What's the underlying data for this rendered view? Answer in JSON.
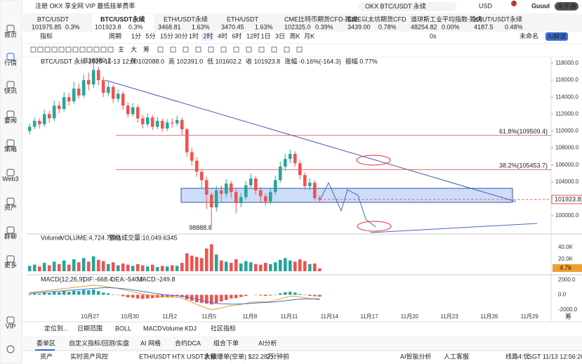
{
  "banner": "注册 OKX 享全网 VIP 最低挂单费率",
  "search": "OKX BTC/USDT 永续",
  "user": "Guuul",
  "currency": "USD",
  "status": "未开通",
  "badge": "7",
  "sidebar": [
    "首页",
    "行情",
    "快讯",
    "要闻",
    "策略",
    "Web3",
    "资产",
    "群聊",
    "更多",
    "VIP"
  ],
  "tickers": [
    {
      "name": "BTC/USDT",
      "price": "101975.85",
      "change": "0.3%",
      "color": "#1a9e6a"
    },
    {
      "name": "BTC/USDT永续",
      "price": "101923.8",
      "change": "0.3%",
      "color": "#1a9e6a"
    },
    {
      "name": "ETH/USDT永续",
      "price": "3468.81",
      "change": "1.63%",
      "color": "#e03a3a"
    },
    {
      "name": "ETH/USDT",
      "price": "3470.45",
      "change": "1.63%",
      "color": "#e03a3a"
    },
    {
      "name": "CME比特币期货CFD-路虎",
      "price": "102325.0",
      "change": "0.39%",
      "color": "#333333"
    },
    {
      "name": "CME以太坊期货CFD",
      "price": "3439.00",
      "change": "0.78%",
      "color": "#333333"
    },
    {
      "name": "道琼斯工业平均指数-路虎",
      "price": "48254.82",
      "change": "0.00%",
      "color": "#333333"
    },
    {
      "name": "XAUT/USDT永续",
      "price": "4187.5",
      "change": "0.48%",
      "color": "#1a9e6a"
    }
  ],
  "toolbar": {
    "indicator": "指标",
    "period": "周期",
    "intervals": [
      "1分",
      "5分",
      "15分",
      "30分",
      "1时",
      "2时",
      "4时",
      "6时",
      "12时",
      "1日",
      "3日",
      "周K",
      "月K"
    ],
    "timer": "0s",
    "layout_name": "未命名",
    "ai_button": "AI解读"
  },
  "draw_tools": [
    "主",
    "大",
    "筹"
  ],
  "bottom_bar": {
    "locate": "定位到...",
    "date_range": "日期范围",
    "indicators": [
      "BOLL",
      "MACD",
      "Volume",
      "KDJ"
    ],
    "community": "社区指标",
    "chip": "筹"
  },
  "tabs": [
    "委单区",
    "自定义指标/回测/实盘",
    "AI 网格",
    "合约DCA",
    "组合下单",
    "AI分析"
  ],
  "status_bar": {
    "assets": "资产",
    "risk": "实时资产风控",
    "news": "ETH/USDT HTX USDT永续",
    "alert": "大额爆单(空单) $22.28万",
    "ago": "2分钟前",
    "ai": "AI智能分析",
    "service": "人工客服",
    "line": "线路4:优",
    "time": "SGT 11/13 12:56:26"
  },
  "chart_data": {
    "type": "candlestick",
    "title": "BTC/USDT 永续 2025-11-13 12:00",
    "info": [
      "开 102088.0",
      "高 102391.0",
      "低 101602.2",
      "收 101923.8",
      "涨幅 -0.16%(-164.3)",
      "振幅 0.77%"
    ],
    "up_color": "#26a69a",
    "down_color": "#ef5350",
    "open": [
      110000,
      110500,
      111200,
      110800,
      112000,
      111500,
      113000,
      112600,
      114000,
      113500,
      115000,
      114200,
      116000,
      115500,
      117200,
      116000,
      114500,
      115200,
      113800,
      114400,
      113000,
      112000,
      112800,
      111500,
      110800,
      111600,
      110500,
      111200,
      110300,
      111000,
      110900,
      111300,
      110200,
      107500,
      106500,
      105200,
      104200,
      102500,
      101000,
      103000,
      102600,
      103800,
      102800,
      101500,
      102200,
      103600,
      104400,
      103000,
      102300,
      101700,
      102800,
      104200,
      105800,
      106700,
      107300,
      106200,
      104800,
      103500,
      103900,
      102088
    ],
    "high": [
      110900,
      111600,
      111500,
      112500,
      112400,
      113600,
      113500,
      114600,
      114500,
      115800,
      115600,
      116700,
      116900,
      118380.2,
      117600,
      116400,
      115900,
      115500,
      114900,
      114700,
      113400,
      113300,
      113100,
      111900,
      112100,
      111900,
      111700,
      111500,
      111400,
      111500,
      111800,
      111600,
      110400,
      108000,
      106900,
      105500,
      104600,
      102800,
      103500,
      103600,
      104300,
      104100,
      103100,
      102700,
      104100,
      105000,
      104700,
      103400,
      102600,
      103200,
      104700,
      106400,
      107300,
      107800,
      107600,
      106500,
      105100,
      104400,
      104200,
      102391
    ],
    "low": [
      109600,
      110200,
      110300,
      110500,
      111000,
      111200,
      112100,
      112300,
      113000,
      113200,
      113800,
      113900,
      114800,
      115100,
      115400,
      114000,
      114100,
      113300,
      113400,
      112500,
      111600,
      111700,
      111000,
      110300,
      110500,
      110100,
      110200,
      109900,
      110000,
      110400,
      110600,
      109500,
      107000,
      105900,
      104600,
      103200,
      100800,
      98888.8,
      100500,
      101600,
      102200,
      102100,
      100300,
      101000,
      101900,
      103200,
      102500,
      101600,
      101200,
      101400,
      102500,
      103900,
      105300,
      106200,
      105800,
      104300,
      103100,
      103000,
      101800,
      101602.2
    ],
    "close": [
      110500,
      111200,
      110800,
      112000,
      111500,
      113000,
      112600,
      114000,
      113500,
      115000,
      114200,
      116000,
      115500,
      117200,
      116000,
      114500,
      115200,
      113800,
      114400,
      113000,
      112000,
      112800,
      111500,
      110800,
      111600,
      110500,
      111200,
      110300,
      111000,
      110900,
      111300,
      110200,
      107500,
      106500,
      105200,
      104200,
      102500,
      101000,
      103000,
      102600,
      103800,
      102800,
      101500,
      102200,
      103600,
      104400,
      103000,
      102300,
      101700,
      102800,
      104200,
      105800,
      106700,
      107300,
      106200,
      104800,
      103500,
      103900,
      102088,
      101923.8
    ],
    "xlim": [
      -0.6,
      106.1
    ],
    "xticks": [
      {
        "value": 12.3,
        "label": "10月27"
      },
      {
        "value": 20.4,
        "label": "10月30"
      },
      {
        "value": 28.5,
        "label": "11月2"
      },
      {
        "value": 36.5,
        "label": "11月5"
      },
      {
        "value": 44.8,
        "label": "11月8"
      },
      {
        "value": 52.8,
        "label": "11月11"
      },
      {
        "value": 61,
        "label": "11月14"
      },
      {
        "value": 69.1,
        "label": "11月17"
      },
      {
        "value": 77.3,
        "label": "11月20"
      },
      {
        "value": 85.4,
        "label": "11月23"
      },
      {
        "value": 93.5,
        "label": "11月26"
      },
      {
        "value": 101.7,
        "label": "11月29"
      }
    ],
    "ylim": [
      98100,
      118660
    ],
    "yticks": [
      {
        "value": 100000,
        "label": "100000.0"
      },
      {
        "value": 102000,
        "label": "102000.0"
      },
      {
        "value": 104000,
        "label": "104000.0"
      },
      {
        "value": 106000,
        "label": "106000.0"
      },
      {
        "value": 108000,
        "label": "108000.0"
      },
      {
        "value": 110000,
        "label": "110000.0"
      },
      {
        "value": 112000,
        "label": "112000.0"
      },
      {
        "value": 114000,
        "label": "114000.0"
      },
      {
        "value": 116000,
        "label": "116000.0"
      },
      {
        "value": 118000,
        "label": "118000.0"
      }
    ],
    "fib_levels": [
      {
        "value": 109509.4,
        "label": "61.8%(109509.4)"
      },
      {
        "value": 105453.7,
        "label": "38.2%(105453.7)"
      }
    ],
    "volume": {
      "title": "Volume",
      "label": "VOLUME:4,724.7240",
      "estimate": "预估成交量:10,049.6345",
      "values": [
        9000,
        11000,
        8000,
        14000,
        10000,
        16000,
        12000,
        18000,
        11000,
        20000,
        15000,
        22000,
        16000,
        25000,
        19000,
        17000,
        12000,
        15000,
        10000,
        13000,
        11000,
        9000,
        12000,
        10000,
        8000,
        11000,
        7000,
        9000,
        8000,
        10000,
        9000,
        14000,
        30000,
        26000,
        24000,
        22000,
        38000,
        45000,
        28000,
        18000,
        16000,
        14000,
        20000,
        13000,
        17000,
        15000,
        12000,
        11000,
        14000,
        12000,
        15000,
        19000,
        22000,
        18000,
        16000,
        20000,
        17000,
        12000,
        13000,
        4724.724
      ],
      "ylim": [
        0,
        54000
      ],
      "yticks": [
        {
          "value": 40000,
          "label": "40.0K"
        },
        {
          "value": 20000,
          "label": "20.0K"
        }
      ],
      "last": {
        "value": 4724.724,
        "label": "4.7k"
      }
    },
    "macd": {
      "title": "MACD(12,26,9)",
      "dif_label": "DIF:-668.4",
      "dea_label": "DEA:-540.5",
      "macd_label": "MACD:-249.8",
      "dif_color": "#e0a020",
      "dea_color": "#3a6fd8",
      "hist": [
        100,
        200,
        150,
        300,
        250,
        400,
        350,
        500,
        400,
        550,
        500,
        650,
        600,
        700,
        500,
        300,
        200,
        50,
        -50,
        -200,
        -350,
        -400,
        -500,
        -550,
        -500,
        -450,
        -400,
        -350,
        -300,
        -250,
        -200,
        -300,
        -600,
        -800,
        -1000,
        -1100,
        -1200,
        -1300,
        -1100,
        -900,
        -700,
        -500,
        -450,
        -300,
        -150,
        0,
        -50,
        -100,
        -150,
        -100,
        50,
        200,
        350,
        400,
        300,
        100,
        -50,
        -150,
        -200,
        -249.8
      ],
      "dif": [
        300,
        400,
        450,
        550,
        600,
        700,
        750,
        850,
        900,
        1000,
        1050,
        1150,
        1200,
        1300,
        1250,
        1150,
        1050,
        950,
        850,
        700,
        550,
        400,
        250,
        100,
        0,
        -100,
        -200,
        -250,
        -300,
        -300,
        -350,
        -450,
        -700,
        -1000,
        -1300,
        -1550,
        -1800,
        -2000,
        -1900,
        -1750,
        -1600,
        -1450,
        -1400,
        -1300,
        -1150,
        -1000,
        -950,
        -950,
        -950,
        -900,
        -750,
        -550,
        -350,
        -200,
        -200,
        -300,
        -400,
        -500,
        -580,
        -668.4
      ],
      "dea": [
        200,
        250,
        300,
        350,
        400,
        450,
        500,
        550,
        600,
        650,
        700,
        750,
        800,
        850,
        900,
        950,
        950,
        920,
        880,
        820,
        750,
        650,
        550,
        450,
        350,
        250,
        150,
        50,
        -20,
        -80,
        -150,
        -200,
        -300,
        -450,
        -600,
        -750,
        -900,
        -1050,
        -1150,
        -1200,
        -1230,
        -1250,
        -1250,
        -1230,
        -1200,
        -1150,
        -1100,
        -1070,
        -1040,
        -1000,
        -950,
        -880,
        -800,
        -720,
        -650,
        -600,
        -560,
        -540,
        -530,
        -540.5
      ],
      "ylim": [
        -2500,
        2500
      ],
      "yticks": [
        {
          "value": 2000,
          "label": "2000.0"
        },
        {
          "value": 0,
          "label": "0.0"
        },
        {
          "value": -2000,
          "label": "-2000.0"
        }
      ]
    }
  }
}
